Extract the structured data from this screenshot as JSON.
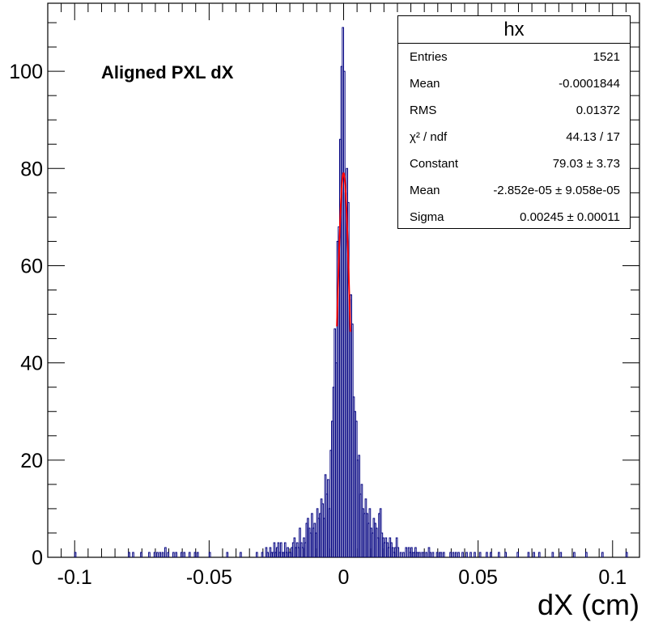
{
  "chart_data": {
    "type": "bar",
    "title": "Aligned PXL dX",
    "xlabel": "dX (cm)",
    "ylabel": "",
    "xlim": [
      -0.11,
      0.11
    ],
    "ylim": [
      0,
      114
    ],
    "x_ticks": [
      "-0.1",
      "-0.05",
      "0",
      "0.05",
      "0.1"
    ],
    "y_ticks": [
      "0",
      "20",
      "40",
      "60",
      "80",
      "100"
    ],
    "grid": false,
    "series": [
      {
        "bin_width": 0.0005,
        "bins": [
          [
            -0.1,
            1
          ],
          [
            -0.08,
            1
          ],
          [
            -0.0785,
            1
          ],
          [
            -0.0755,
            1
          ],
          [
            -0.0725,
            1
          ],
          [
            -0.0705,
            1
          ],
          [
            -0.0695,
            1
          ],
          [
            -0.0685,
            1
          ],
          [
            -0.0675,
            1
          ],
          [
            -0.0665,
            2
          ],
          [
            -0.0655,
            1
          ],
          [
            -0.0635,
            1
          ],
          [
            -0.0625,
            1
          ],
          [
            -0.0605,
            1
          ],
          [
            -0.0595,
            1
          ],
          [
            -0.0575,
            1
          ],
          [
            -0.0555,
            1
          ],
          [
            -0.0545,
            1
          ],
          [
            -0.05,
            1
          ],
          [
            -0.0435,
            1
          ],
          [
            -0.0385,
            1
          ],
          [
            -0.0325,
            1
          ],
          [
            -0.0305,
            1
          ],
          [
            -0.029,
            2
          ],
          [
            -0.0285,
            1
          ],
          [
            -0.0275,
            2
          ],
          [
            -0.027,
            1
          ],
          [
            -0.0265,
            1
          ],
          [
            -0.026,
            3
          ],
          [
            -0.0255,
            1
          ],
          [
            -0.025,
            2
          ],
          [
            -0.0245,
            3
          ],
          [
            -0.024,
            1
          ],
          [
            -0.0235,
            3
          ],
          [
            -0.023,
            1
          ],
          [
            -0.0225,
            1
          ],
          [
            -0.022,
            3
          ],
          [
            -0.0215,
            1
          ],
          [
            -0.021,
            2
          ],
          [
            -0.0205,
            1
          ],
          [
            -0.02,
            1
          ],
          [
            -0.0195,
            2
          ],
          [
            -0.019,
            3
          ],
          [
            -0.0185,
            4
          ],
          [
            -0.018,
            2
          ],
          [
            -0.0175,
            3
          ],
          [
            -0.017,
            2
          ],
          [
            -0.0165,
            6
          ],
          [
            -0.016,
            3
          ],
          [
            -0.0155,
            2
          ],
          [
            -0.015,
            4
          ],
          [
            -0.0145,
            3
          ],
          [
            -0.014,
            7
          ],
          [
            -0.0135,
            8
          ],
          [
            -0.013,
            6
          ],
          [
            -0.0125,
            5
          ],
          [
            -0.012,
            9
          ],
          [
            -0.0115,
            6
          ],
          [
            -0.011,
            7
          ],
          [
            -0.0105,
            5
          ],
          [
            -0.01,
            10
          ],
          [
            -0.0095,
            8
          ],
          [
            -0.009,
            9
          ],
          [
            -0.0085,
            12
          ],
          [
            -0.008,
            11
          ],
          [
            -0.0075,
            8
          ],
          [
            -0.007,
            17
          ],
          [
            -0.0065,
            13
          ],
          [
            -0.006,
            16
          ],
          [
            -0.0055,
            10
          ],
          [
            -0.005,
            22
          ],
          [
            -0.0045,
            28
          ],
          [
            -0.004,
            35
          ],
          [
            -0.0035,
            47
          ],
          [
            -0.003,
            40
          ],
          [
            -0.0025,
            65
          ],
          [
            -0.002,
            68
          ],
          [
            -0.0015,
            86
          ],
          [
            -0.001,
            101
          ],
          [
            -0.0005,
            109
          ],
          [
            0,
            100
          ],
          [
            0.0005,
            75
          ],
          [
            0.001,
            80
          ],
          [
            0.0015,
            73
          ],
          [
            0.002,
            53
          ],
          [
            0.0025,
            54
          ],
          [
            0.003,
            48
          ],
          [
            0.0035,
            33
          ],
          [
            0.004,
            30
          ],
          [
            0.0045,
            28
          ],
          [
            0.005,
            20
          ],
          [
            0.0055,
            21
          ],
          [
            0.006,
            13
          ],
          [
            0.0065,
            15
          ],
          [
            0.007,
            10
          ],
          [
            0.0075,
            9
          ],
          [
            0.008,
            12
          ],
          [
            0.0085,
            9
          ],
          [
            0.009,
            7
          ],
          [
            0.0095,
            10
          ],
          [
            0.01,
            6
          ],
          [
            0.0105,
            5
          ],
          [
            0.011,
            8
          ],
          [
            0.0115,
            7
          ],
          [
            0.012,
            6
          ],
          [
            0.0125,
            4
          ],
          [
            0.013,
            9
          ],
          [
            0.0135,
            10
          ],
          [
            0.014,
            5
          ],
          [
            0.0145,
            4
          ],
          [
            0.015,
            3
          ],
          [
            0.0155,
            4
          ],
          [
            0.016,
            3
          ],
          [
            0.0165,
            2
          ],
          [
            0.017,
            4
          ],
          [
            0.0175,
            3
          ],
          [
            0.018,
            2
          ],
          [
            0.0185,
            1
          ],
          [
            0.019,
            2
          ],
          [
            0.0195,
            4
          ],
          [
            0.02,
            2
          ],
          [
            0.021,
            1
          ],
          [
            0.022,
            1
          ],
          [
            0.023,
            2
          ],
          [
            0.024,
            2
          ],
          [
            0.0245,
            1
          ],
          [
            0.025,
            2
          ],
          [
            0.0255,
            1
          ],
          [
            0.026,
            1
          ],
          [
            0.0265,
            2
          ],
          [
            0.027,
            1
          ],
          [
            0.0275,
            1
          ],
          [
            0.028,
            1
          ],
          [
            0.029,
            1
          ],
          [
            0.0295,
            1
          ],
          [
            0.0305,
            1
          ],
          [
            0.0315,
            2
          ],
          [
            0.032,
            1
          ],
          [
            0.033,
            1
          ],
          [
            0.0345,
            1
          ],
          [
            0.0355,
            1
          ],
          [
            0.036,
            1
          ],
          [
            0.037,
            1
          ],
          [
            0.0395,
            1
          ],
          [
            0.0405,
            1
          ],
          [
            0.0415,
            1
          ],
          [
            0.0425,
            1
          ],
          [
            0.044,
            1
          ],
          [
            0.0455,
            1
          ],
          [
            0.047,
            1
          ],
          [
            0.0485,
            1
          ],
          [
            0.0505,
            1
          ],
          [
            0.053,
            1
          ],
          [
            0.0545,
            1
          ],
          [
            0.0575,
            1
          ],
          [
            0.06,
            1
          ],
          [
            0.0645,
            1
          ],
          [
            0.0685,
            1
          ],
          [
            0.0705,
            1
          ],
          [
            0.0725,
            1
          ],
          [
            0.0775,
            1
          ],
          [
            0.0805,
            1
          ],
          [
            0.0855,
            1
          ],
          [
            0.09,
            1
          ],
          [
            0.096,
            1
          ],
          [
            0.105,
            1
          ]
        ]
      },
      {
        "type": "gaussian-fit",
        "constant": 79.03,
        "mean": -2.852e-05,
        "sigma": 0.00245,
        "x_range": [
          -0.0025,
          0.0025
        ]
      }
    ]
  },
  "stats": {
    "title": "hx",
    "rows": [
      {
        "label": "Entries",
        "value": "1521"
      },
      {
        "label": "Mean",
        "value": "-0.0001844"
      },
      {
        "label": "RMS",
        "value": "0.01372"
      },
      {
        "label": "χ² / ndf",
        "value": "44.13 / 17"
      },
      {
        "label": "Constant",
        "value": "79.03 ± 3.73"
      },
      {
        "label": "Mean",
        "value": "-2.852e-05 ± 9.058e-05"
      },
      {
        "label": "Sigma",
        "value": "0.00245 ± 0.00011"
      }
    ]
  },
  "colors": {
    "histogram": "#000080",
    "fit": "#ff0000",
    "axes": "#000000"
  }
}
